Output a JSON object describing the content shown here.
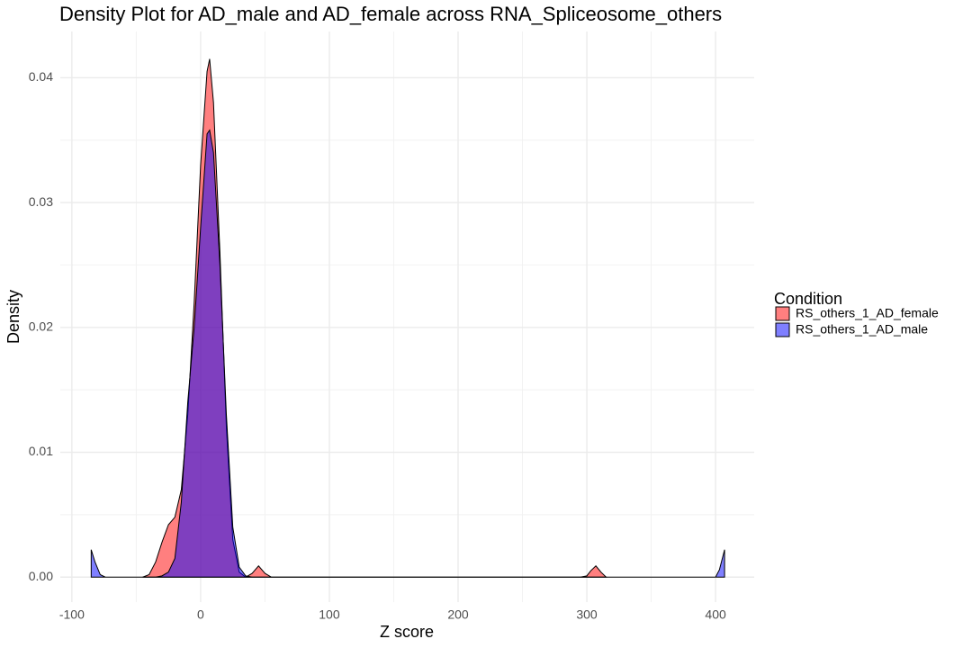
{
  "chart_data": {
    "type": "density",
    "title": "Density Plot for AD_male and AD_female across RNA_Spliceosome_others",
    "x_label": "Z score",
    "y_label": "Density",
    "legend_title": "Condition",
    "legend_position": "right",
    "grid": true,
    "alpha": 0.5,
    "x": [
      -85,
      -82,
      -78,
      -74,
      -70,
      -60,
      -50,
      -45,
      -40,
      -35,
      -30,
      -25,
      -20,
      -15,
      -10,
      -5,
      0,
      5,
      7,
      10,
      15,
      20,
      25,
      30,
      35,
      40,
      45,
      50,
      55,
      60,
      100,
      200,
      295,
      300,
      303,
      307,
      311,
      315,
      320,
      400,
      403,
      407
    ],
    "series": [
      {
        "name": "RS_others_1_AD_female",
        "color": "#ff0000",
        "values": [
          null,
          null,
          null,
          null,
          null,
          null,
          null,
          0,
          0.0002,
          0.0012,
          0.0028,
          0.0042,
          0.0048,
          0.007,
          0.013,
          0.022,
          0.033,
          0.0405,
          0.0415,
          0.038,
          0.026,
          0.012,
          0.003,
          0.0004,
          0,
          0.0003,
          0.0009,
          0.0003,
          0,
          0,
          0,
          0,
          0,
          0.0001,
          0.0005,
          0.0009,
          0.0004,
          0,
          null,
          null,
          null,
          null
        ]
      },
      {
        "name": "RS_others_1_AD_male",
        "color": "#0000ff",
        "values": [
          0.0022,
          0.0012,
          0.0002,
          0,
          0,
          0,
          0,
          0,
          0,
          0,
          0.0001,
          0.0004,
          0.0015,
          0.006,
          0.014,
          0.02,
          0.028,
          0.0355,
          0.0358,
          0.034,
          0.025,
          0.013,
          0.004,
          0.0008,
          0.0001,
          0,
          0,
          0,
          0,
          0,
          0,
          0,
          0,
          0,
          0,
          0,
          0,
          0,
          0,
          0,
          0.0006,
          0.0022
        ]
      }
    ],
    "xlim": [
      -109,
      430
    ],
    "ylim": [
      -0.002,
      0.0437
    ],
    "xticks": [
      -100,
      0,
      100,
      200,
      300,
      400
    ],
    "yticks": [
      {
        "value": 0,
        "label": "0.00"
      },
      0.01,
      0.02,
      0.03,
      0.04
    ]
  }
}
